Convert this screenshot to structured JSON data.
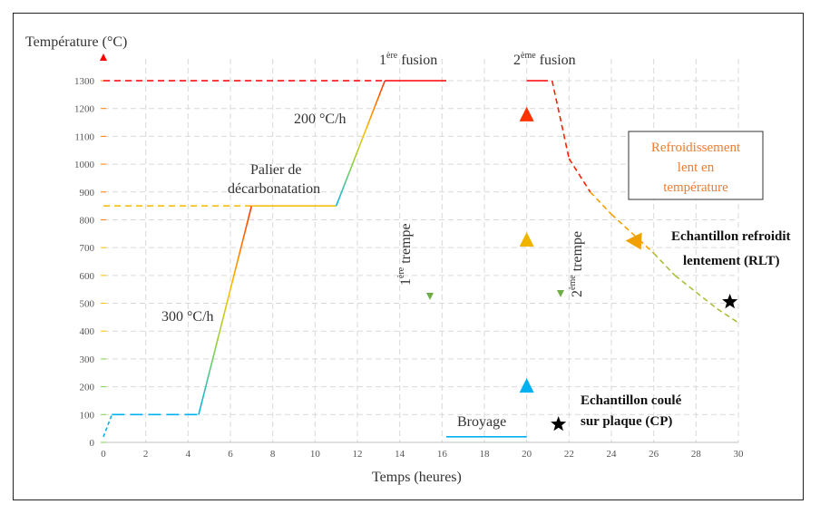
{
  "chart_data": {
    "type": "line",
    "ylabel": "Température (°C)",
    "xlabel": "Temps (heures)",
    "xlim": [
      0,
      30
    ],
    "ylim": [
      0,
      1300
    ],
    "x_ticks": [
      0,
      2,
      4,
      6,
      8,
      10,
      12,
      14,
      16,
      18,
      20,
      22,
      24,
      26,
      28,
      30
    ],
    "y_ticks": [
      0,
      100,
      200,
      300,
      400,
      500,
      600,
      700,
      800,
      900,
      1000,
      1100,
      1200,
      1300
    ],
    "grid": true,
    "profile": [
      {
        "x": 0,
        "y": 20
      },
      {
        "x": 0.4,
        "y": 100
      },
      {
        "x": 4.5,
        "y": 100
      },
      {
        "x": 7,
        "y": 850
      },
      {
        "x": 11,
        "y": 850
      },
      {
        "x": 13.3,
        "y": 1300
      },
      {
        "x": 16.2,
        "y": 1300
      },
      {
        "x": 16.2,
        "y": 20
      },
      {
        "x": 20,
        "y": 20
      },
      {
        "x": 20,
        "y": 1300
      },
      {
        "x": 21,
        "y": 1300
      },
      {
        "x": 21,
        "y": 20
      }
    ],
    "cooling_curve": [
      {
        "x": 21.2,
        "y": 1300
      },
      {
        "x": 22,
        "y": 1020
      },
      {
        "x": 23,
        "y": 900
      },
      {
        "x": 24,
        "y": 820
      },
      {
        "x": 25,
        "y": 750
      },
      {
        "x": 26,
        "y": 680
      },
      {
        "x": 27,
        "y": 600
      },
      {
        "x": 28,
        "y": 540
      },
      {
        "x": 29,
        "y": 480
      },
      {
        "x": 30,
        "y": 430
      }
    ],
    "reference_lines": [
      {
        "y": 1300,
        "x_to": 13.3,
        "color": "#ff0000"
      },
      {
        "y": 850,
        "x_to": 7,
        "color": "#f5b800"
      }
    ],
    "annotations": {
      "rate1": "300 °C/h",
      "palier_l1": "Palier de",
      "palier_l2": "décarbonatation",
      "rate2": "200 °C/h",
      "fusion1_sup": "ère",
      "fusion1": "1",
      "fusion1_word": " fusion",
      "fusion2": "2",
      "fusion2_sup": "ème",
      "fusion2_word": " fusion",
      "trempe1": "1",
      "trempe1_sup": "ère",
      "trempe1_word": " trempe",
      "trempe2": "2",
      "trempe2_sup": "ème",
      "trempe2_word": " trempe",
      "broyage": "Broyage",
      "refroid_l1": "Refroidissement",
      "refroid_l2": "lent en",
      "refroid_l3": "température",
      "rlt_l1": "Echantillon refroidit",
      "rlt_l2": "lentement (RLT)",
      "cp_l1": "Echantillon coulé",
      "cp_l2": "sur plaque (CP)"
    },
    "markers": [
      {
        "type": "star",
        "x": 21.5,
        "y": 65
      },
      {
        "type": "star",
        "x": 29.6,
        "y": 505
      }
    ]
  },
  "colors": {
    "grid": "#d9d9d9",
    "axis_gradient": [
      "#ff0000",
      "#ffc000",
      "#00b0f0"
    ],
    "box_border": "#333333",
    "refroid_text": "#ed7d31"
  }
}
